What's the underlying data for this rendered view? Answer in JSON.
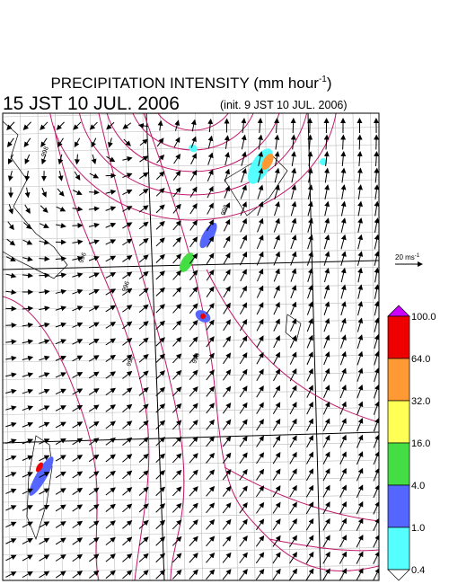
{
  "header": {
    "title": {
      "main": "PRECIPITATION INTENSITY (mm hour",
      "sup": "-1",
      "end": ")"
    },
    "valid_time": "15 JST 10 JUL. 2006",
    "init_time": "(init. 9 JST 10 JUL. 2006)"
  },
  "wind_reference": {
    "main": "20 ms",
    "sup": "-1"
  },
  "isobar_labels": [
    "998",
    "996",
    "996",
    "996",
    "998",
    "998"
  ],
  "colorbar": {
    "labels": [
      "100.0",
      "64.0",
      "32.0",
      "16.0",
      "4.0",
      "1.0",
      "0.4"
    ],
    "colors": [
      "#ee0000",
      "#ff9933",
      "#ffff55",
      "#44dd44",
      "#5566ff",
      "#55ffff"
    ],
    "over_color": "#cc00ff",
    "under_color": "#ffffff"
  }
}
